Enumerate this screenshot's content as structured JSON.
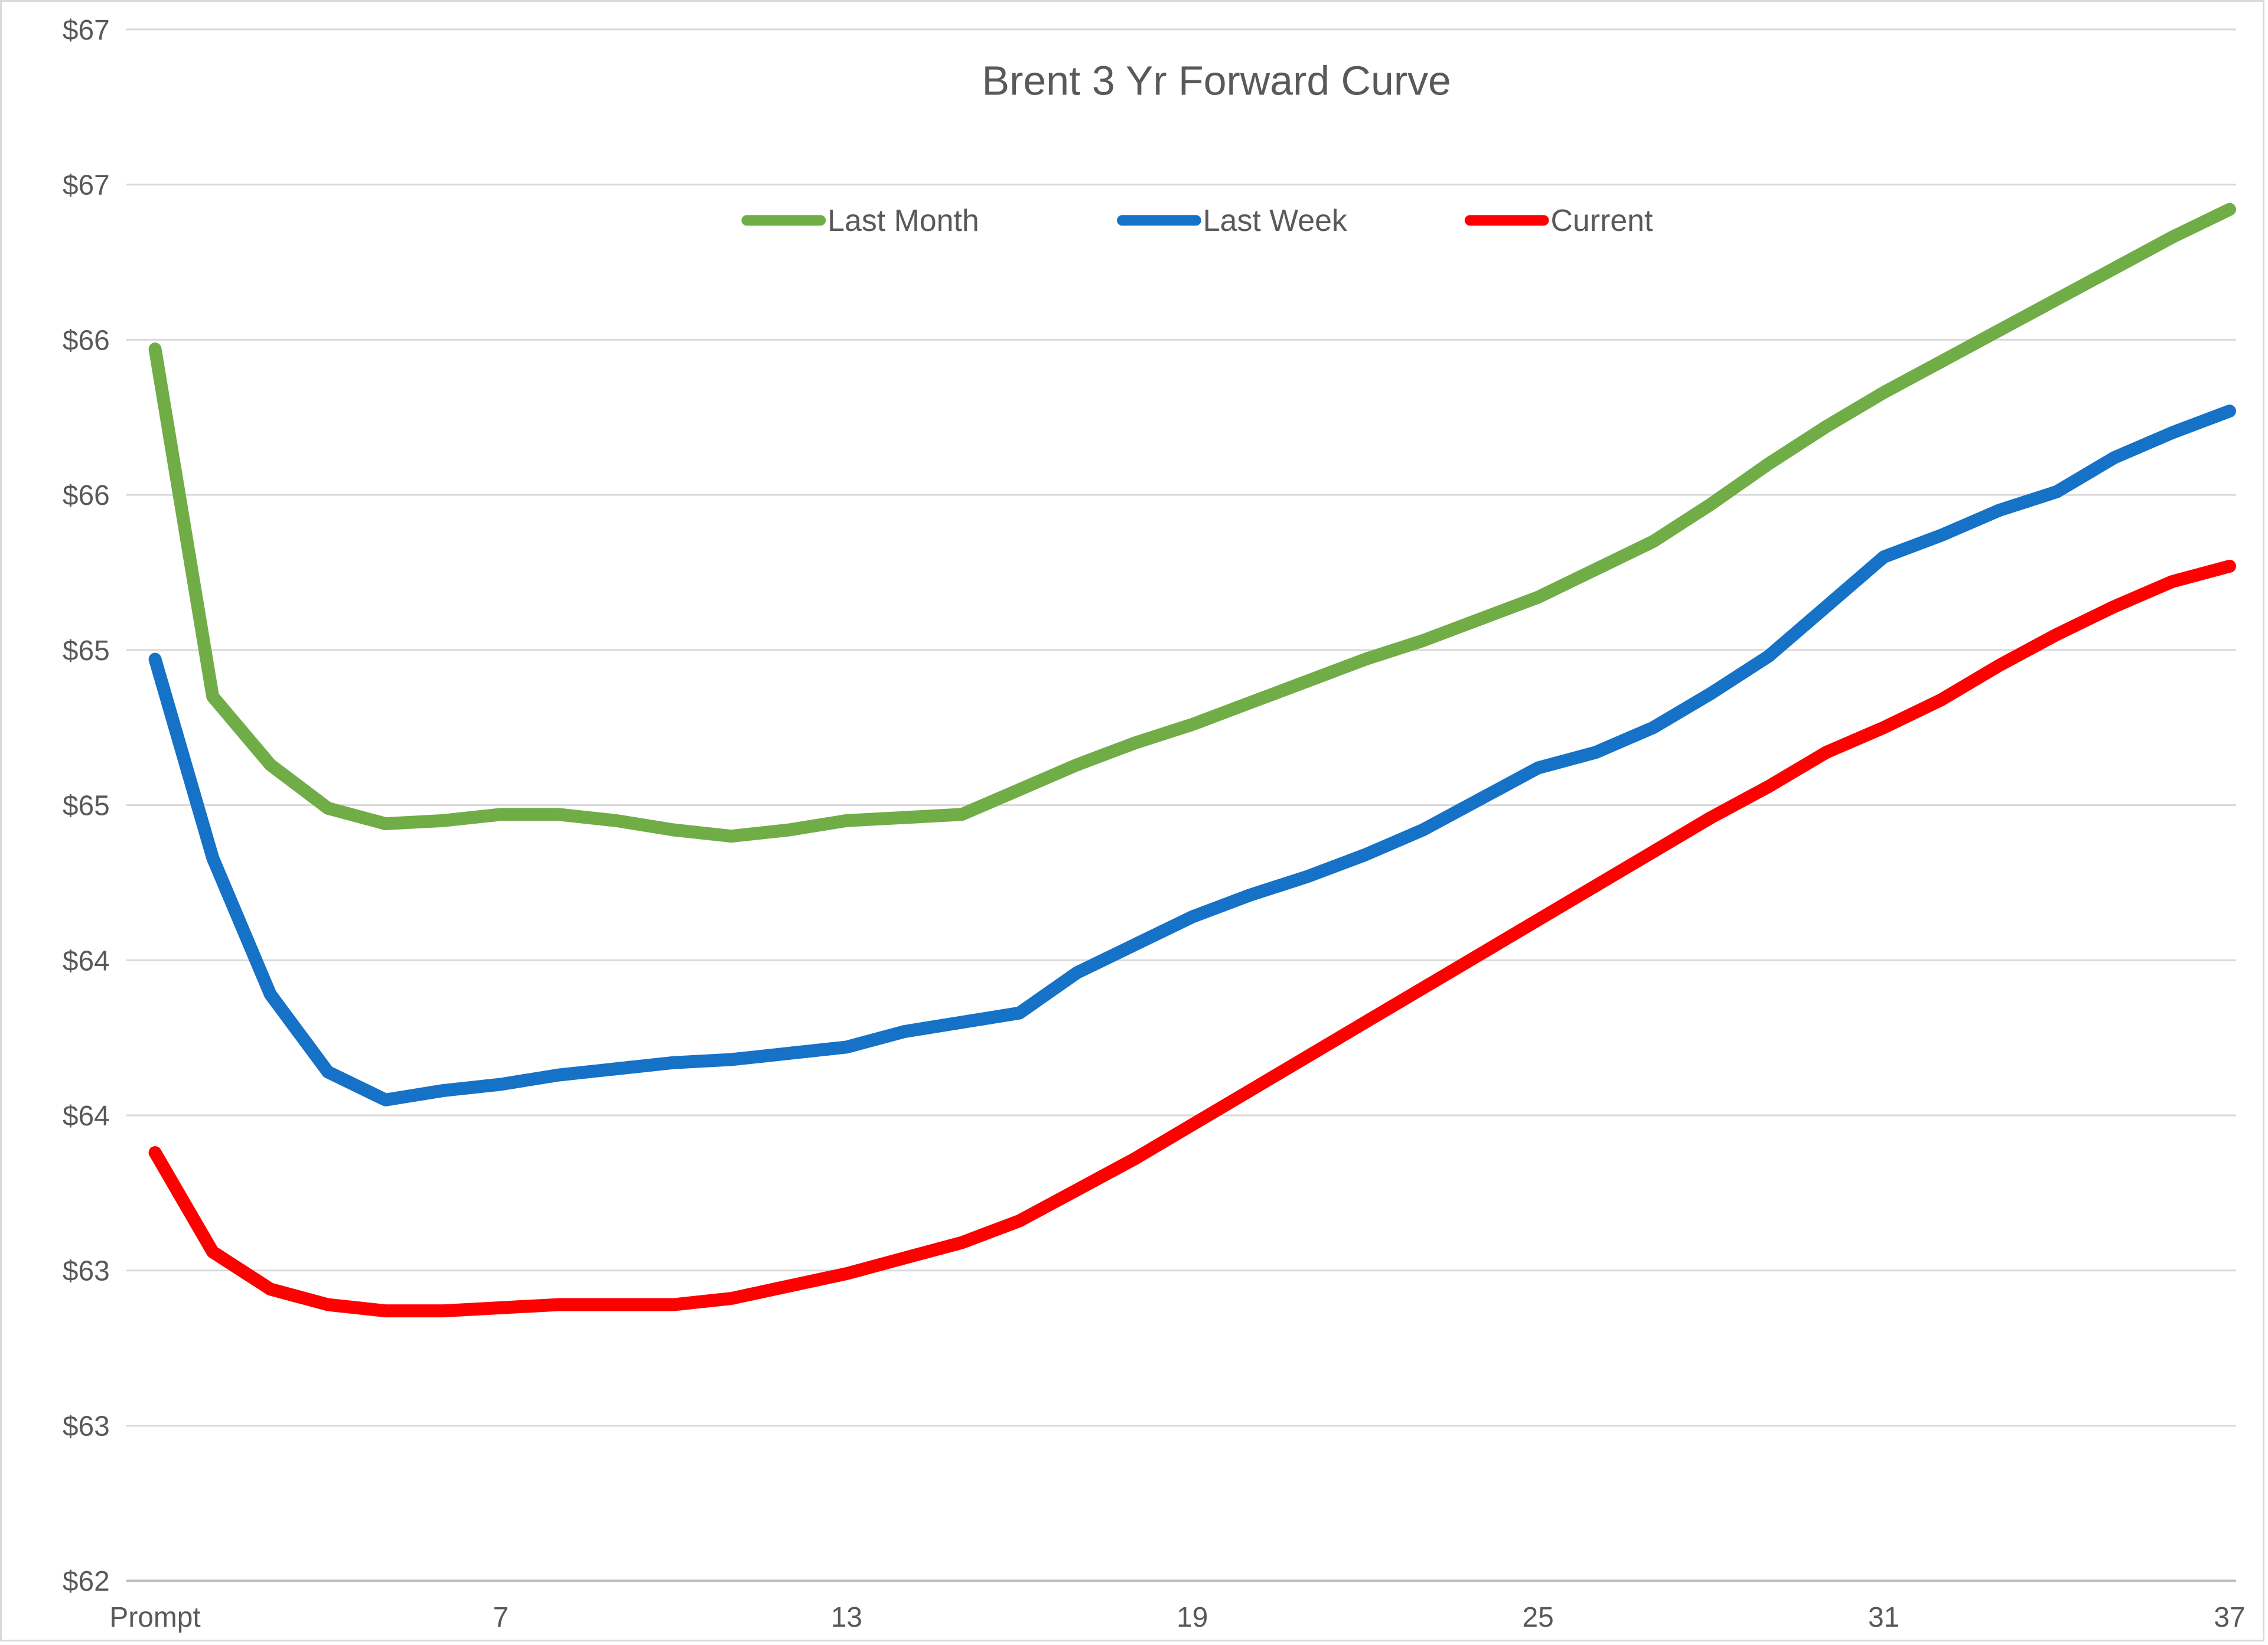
{
  "chart_data": {
    "type": "line",
    "title": "Brent 3 Yr Forward Curve",
    "xlabel": "",
    "ylabel": "",
    "ylim": [
      62,
      67
    ],
    "grid": "horizontal",
    "legend_position": "top",
    "x": [
      1,
      2,
      3,
      4,
      5,
      6,
      7,
      8,
      9,
      10,
      11,
      12,
      13,
      14,
      15,
      16,
      17,
      18,
      19,
      20,
      21,
      22,
      23,
      24,
      25,
      26,
      27,
      28,
      29,
      30,
      31,
      32,
      33,
      34,
      35,
      36,
      37
    ],
    "x_tick_labels": [
      {
        "x": 1,
        "label": "Prompt"
      },
      {
        "x": 7,
        "label": "7"
      },
      {
        "x": 13,
        "label": "13"
      },
      {
        "x": 19,
        "label": "19"
      },
      {
        "x": 25,
        "label": "25"
      },
      {
        "x": 31,
        "label": "31"
      },
      {
        "x": 37,
        "label": "37"
      }
    ],
    "y_ticks": [
      {
        "value": 67.0,
        "label": "$67"
      },
      {
        "value": 66.5,
        "label": "$67"
      },
      {
        "value": 66.0,
        "label": "$66"
      },
      {
        "value": 65.5,
        "label": "$66"
      },
      {
        "value": 65.0,
        "label": "$65"
      },
      {
        "value": 64.5,
        "label": "$65"
      },
      {
        "value": 64.0,
        "label": "$64"
      },
      {
        "value": 63.5,
        "label": "$64"
      },
      {
        "value": 63.0,
        "label": "$63"
      },
      {
        "value": 62.5,
        "label": "$63"
      },
      {
        "value": 62.0,
        "label": "$62"
      }
    ],
    "series": [
      {
        "name": "Last Month",
        "color": "#70AD47",
        "values": [
          65.97,
          64.85,
          64.63,
          64.49,
          64.44,
          64.45,
          64.47,
          64.47,
          64.45,
          64.42,
          64.4,
          64.42,
          64.45,
          64.46,
          64.47,
          64.55,
          64.63,
          64.7,
          64.76,
          64.83,
          64.9,
          64.97,
          65.03,
          65.1,
          65.17,
          65.26,
          65.35,
          65.47,
          65.6,
          65.72,
          65.83,
          65.93,
          66.03,
          66.13,
          66.23,
          66.33,
          66.42
        ]
      },
      {
        "name": "Last Week",
        "color": "#1572C6",
        "values": [
          64.97,
          64.33,
          63.89,
          63.64,
          63.55,
          63.58,
          63.6,
          63.63,
          63.65,
          63.67,
          63.68,
          63.7,
          63.72,
          63.77,
          63.8,
          63.83,
          63.96,
          64.05,
          64.14,
          64.21,
          64.27,
          64.34,
          64.42,
          64.52,
          64.62,
          64.67,
          64.75,
          64.86,
          64.98,
          65.14,
          65.3,
          65.37,
          65.45,
          65.51,
          65.62,
          65.7,
          65.77
        ]
      },
      {
        "name": "Current",
        "color": "#FF0000",
        "values": [
          63.38,
          63.06,
          62.94,
          62.89,
          62.87,
          62.87,
          62.88,
          62.89,
          62.89,
          62.89,
          62.91,
          62.95,
          62.99,
          63.04,
          63.09,
          63.16,
          63.26,
          63.36,
          63.47,
          63.58,
          63.69,
          63.8,
          63.91,
          64.02,
          64.13,
          64.24,
          64.35,
          64.46,
          64.56,
          64.67,
          64.75,
          64.84,
          64.95,
          65.05,
          65.14,
          65.22,
          65.27
        ]
      }
    ],
    "colors": {
      "text": "#595959",
      "gridline": "#D9D9D9",
      "axis_line": "#BFBFBF",
      "background": "#FFFFFF"
    }
  }
}
